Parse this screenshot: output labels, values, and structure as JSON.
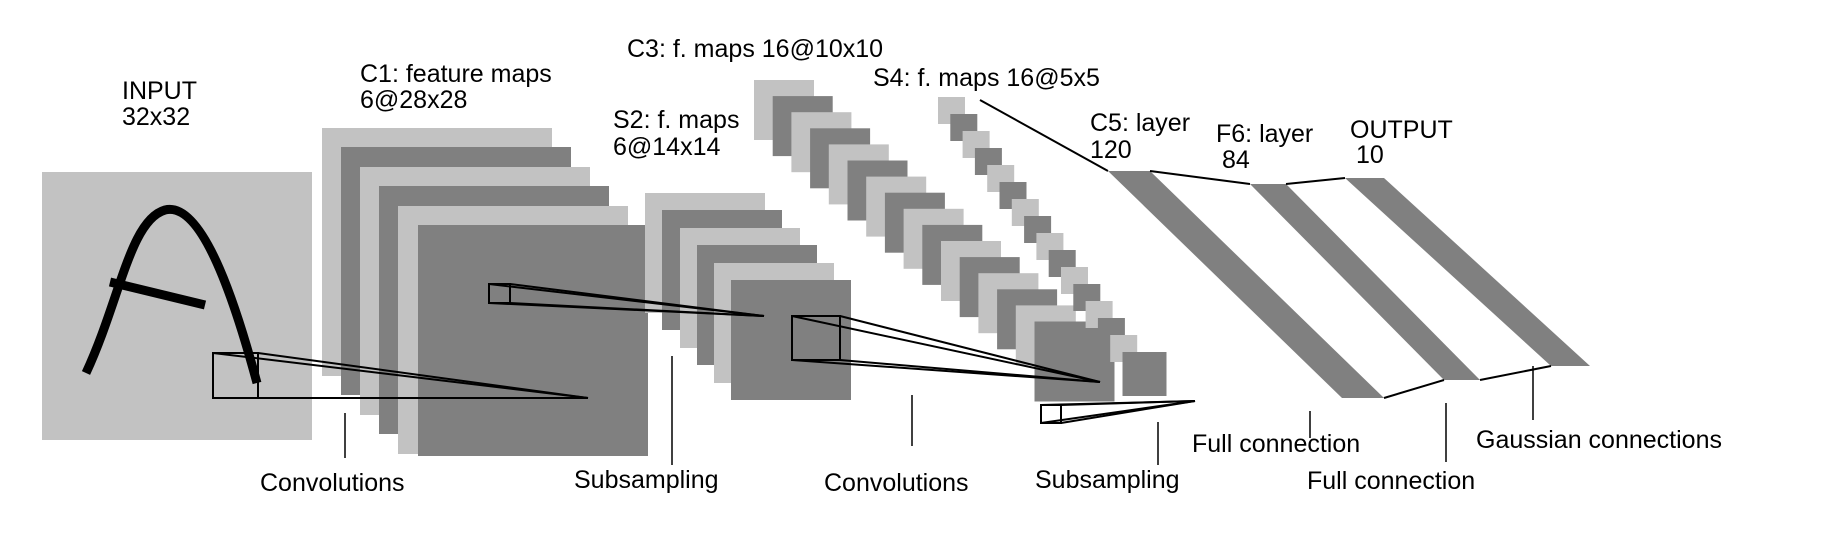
{
  "colors": {
    "light_gray": "#c2c2c2",
    "dark_gray": "#808080",
    "line": "#000000",
    "background": "#ffffff"
  },
  "layers": {
    "input": {
      "line1": "INPUT",
      "line2": "32x32"
    },
    "c1": {
      "line1": "C1: feature maps",
      "line2": "6@28x28"
    },
    "s2": {
      "line1": "S2: f. maps",
      "line2": "6@14x14"
    },
    "c3": {
      "line1": "C3: f. maps 16@10x10"
    },
    "s4": {
      "line1": "S4: f. maps 16@5x5"
    },
    "c5": {
      "line1": "C5: layer",
      "line2": "120"
    },
    "f6": {
      "line1": "F6: layer",
      "line2": "84"
    },
    "output": {
      "line1": "OUTPUT",
      "line2": "10"
    }
  },
  "operations": {
    "conv1": "Convolutions",
    "sub1": "Subsampling",
    "conv2": "Convolutions",
    "sub2": "Subsampling",
    "full1": "Full connection",
    "full2": "Full connection",
    "gauss": "Gaussian connections"
  }
}
